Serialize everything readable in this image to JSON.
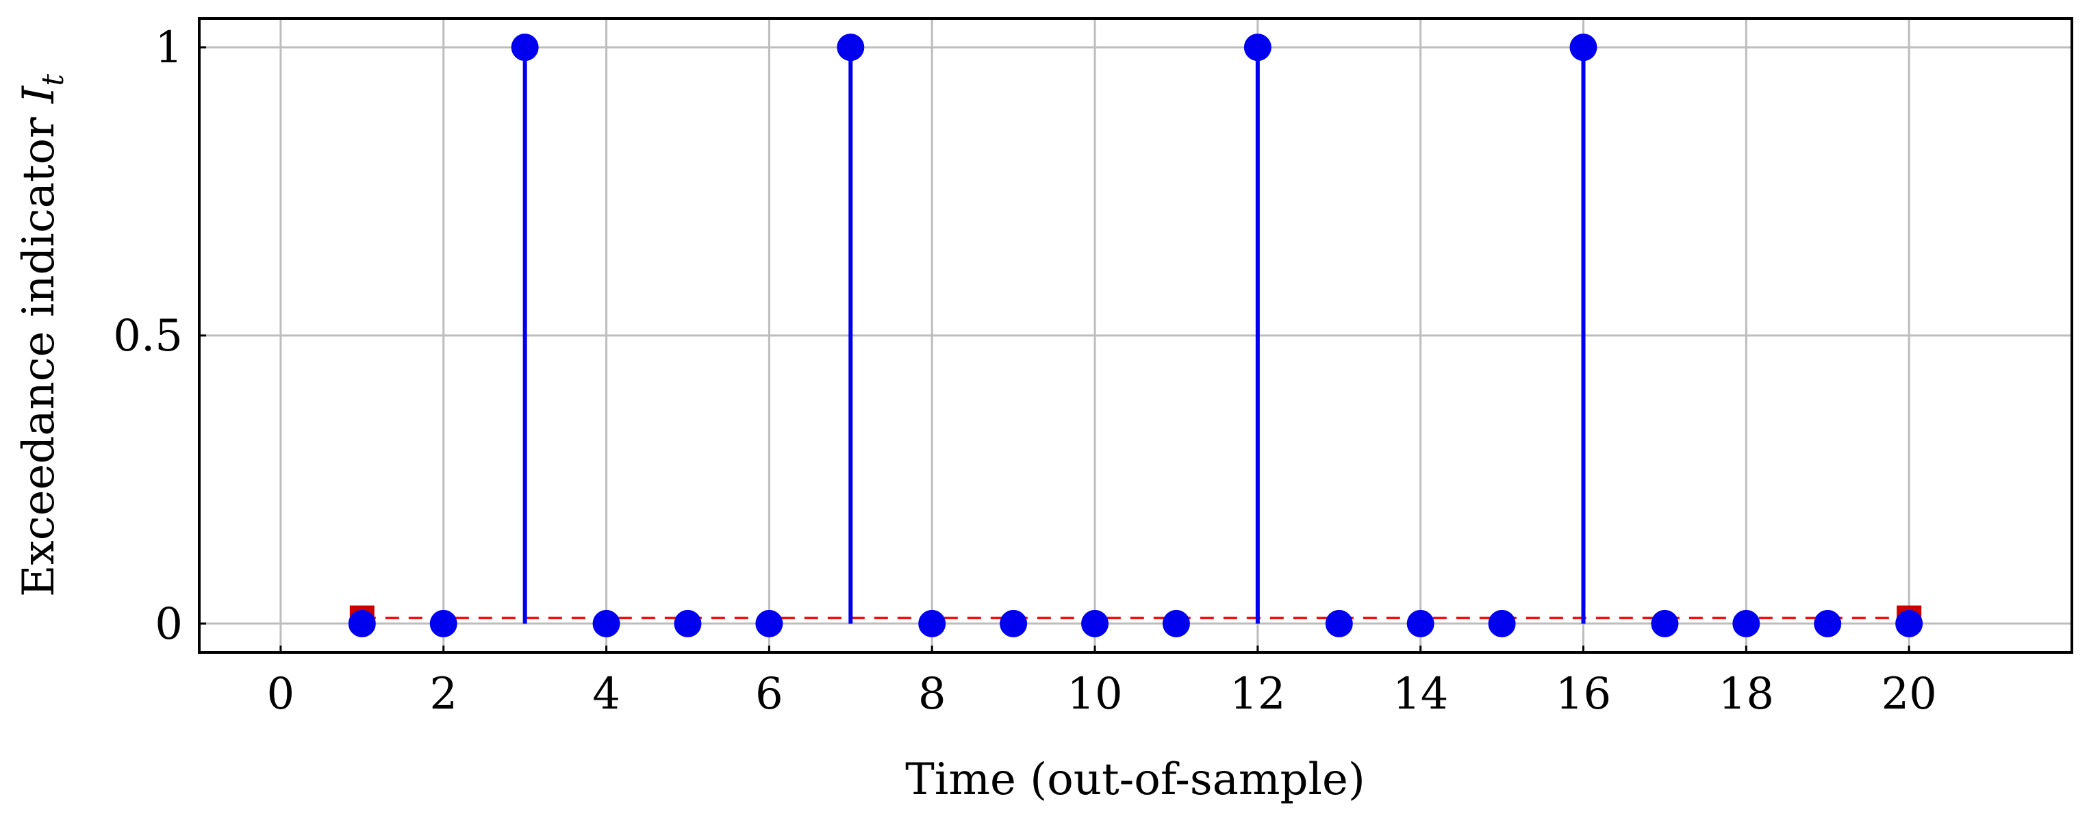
{
  "chart_data": {
    "type": "scatter",
    "style": "stem",
    "xlabel": "Time (out-of-sample)",
    "ylabel_text": "Exceedance indicator ",
    "ylabel_symbol": "I",
    "ylabel_subscript": "t",
    "xlim": [
      -1,
      22
    ],
    "ylim": [
      -0.05,
      1.05
    ],
    "x_ticks": [
      0,
      2,
      4,
      6,
      8,
      10,
      12,
      14,
      16,
      18,
      20
    ],
    "y_ticks": [
      0,
      0.5,
      1
    ],
    "grid": true,
    "series": [
      {
        "color": "#0000ee",
        "marker": "circle",
        "x": [
          1,
          2,
          3,
          4,
          5,
          6,
          7,
          8,
          9,
          10,
          11,
          12,
          13,
          14,
          15,
          16,
          17,
          18,
          19,
          20
        ],
        "y": [
          0,
          0,
          1,
          0,
          0,
          0,
          1,
          0,
          0,
          0,
          0,
          1,
          0,
          0,
          0,
          1,
          0,
          0,
          0,
          0
        ]
      },
      {
        "color": "#ee1111",
        "marker": "square",
        "line": "dashed",
        "x": [
          1,
          20
        ],
        "y": [
          0.01,
          0.01
        ]
      }
    ]
  }
}
